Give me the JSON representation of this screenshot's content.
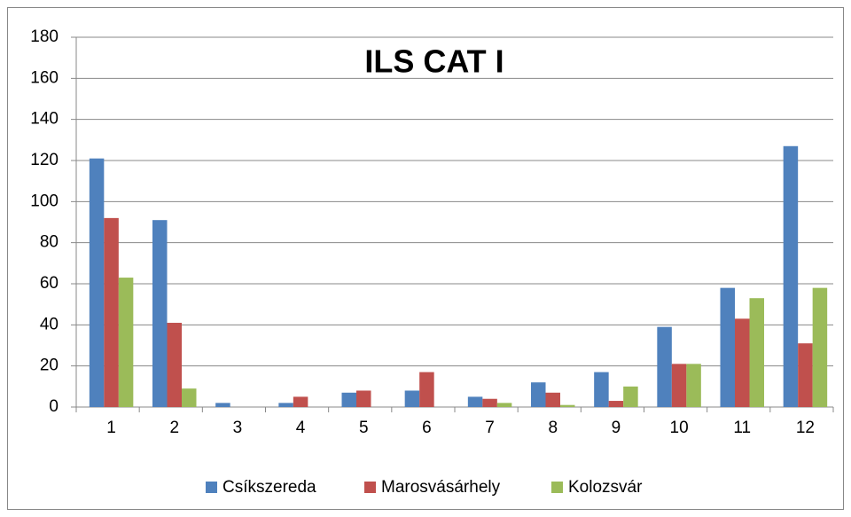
{
  "chart_data": {
    "type": "bar",
    "title": "ILS CAT I",
    "categories": [
      "1",
      "2",
      "3",
      "4",
      "5",
      "6",
      "7",
      "8",
      "9",
      "10",
      "11",
      "12"
    ],
    "series": [
      {
        "name": "Csíkszereda",
        "color": "#4f81bd",
        "values": [
          121,
          91,
          2,
          2,
          7,
          8,
          5,
          12,
          17,
          39,
          58,
          127
        ]
      },
      {
        "name": "Marosvásárhely",
        "color": "#c0504d",
        "values": [
          92,
          41,
          0,
          5,
          8,
          17,
          4,
          7,
          3,
          21,
          43,
          31
        ]
      },
      {
        "name": "Kolozsvár",
        "color": "#9bbb59",
        "values": [
          63,
          9,
          0,
          0,
          0,
          0,
          2,
          1,
          10,
          21,
          53,
          58
        ]
      }
    ],
    "ylim": [
      0,
      180
    ],
    "yticks": [
      0,
      20,
      40,
      60,
      80,
      100,
      120,
      140,
      160,
      180
    ],
    "grid": true,
    "legend": "bottom"
  }
}
